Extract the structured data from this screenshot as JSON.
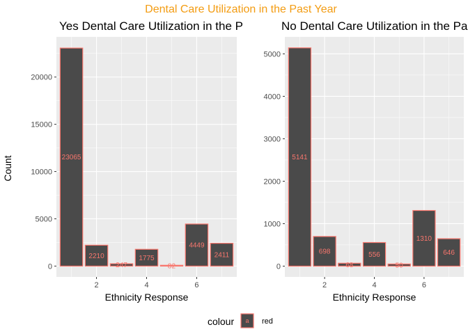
{
  "title": "Dental Care Utilization in the Past Year",
  "shared_ylabel": "Count",
  "legend": {
    "title": "colour",
    "key_text": "a",
    "label": "red"
  },
  "colors": {
    "title": "#f39c12",
    "bar_fill": "#4a4a4a",
    "bar_outline": "#f8766d",
    "panel_bg": "#ebebeb",
    "grid": "#ffffff"
  },
  "chart_data": [
    {
      "type": "bar",
      "title": "Yes Dental Care Utilization in the Past Year",
      "xlabel": "Ethnicity Response",
      "ylabel": "Count",
      "x": [
        1,
        2,
        3,
        4,
        5,
        6,
        7
      ],
      "values": [
        23065,
        2210,
        247,
        1775,
        82,
        4449,
        2411
      ],
      "xlim": [
        0.4,
        7.6
      ],
      "ylim": [
        -1150,
        24250
      ],
      "x_ticks": [
        2,
        4,
        6
      ],
      "y_ticks": [
        0,
        5000,
        10000,
        15000,
        20000
      ],
      "grid": true
    },
    {
      "type": "bar",
      "title": "No Dental Care Utilization in the Past Year",
      "xlabel": "Ethnicity Response",
      "ylabel": "Count",
      "x": [
        1,
        2,
        3,
        4,
        5,
        6,
        7
      ],
      "values": [
        5141,
        698,
        68,
        556,
        50,
        1310,
        646
      ],
      "xlim": [
        0.4,
        7.6
      ],
      "ylim": [
        -255,
        5400
      ],
      "x_ticks": [
        2,
        4,
        6
      ],
      "y_ticks": [
        0,
        1000,
        2000,
        3000,
        4000,
        5000
      ],
      "grid": true
    }
  ]
}
